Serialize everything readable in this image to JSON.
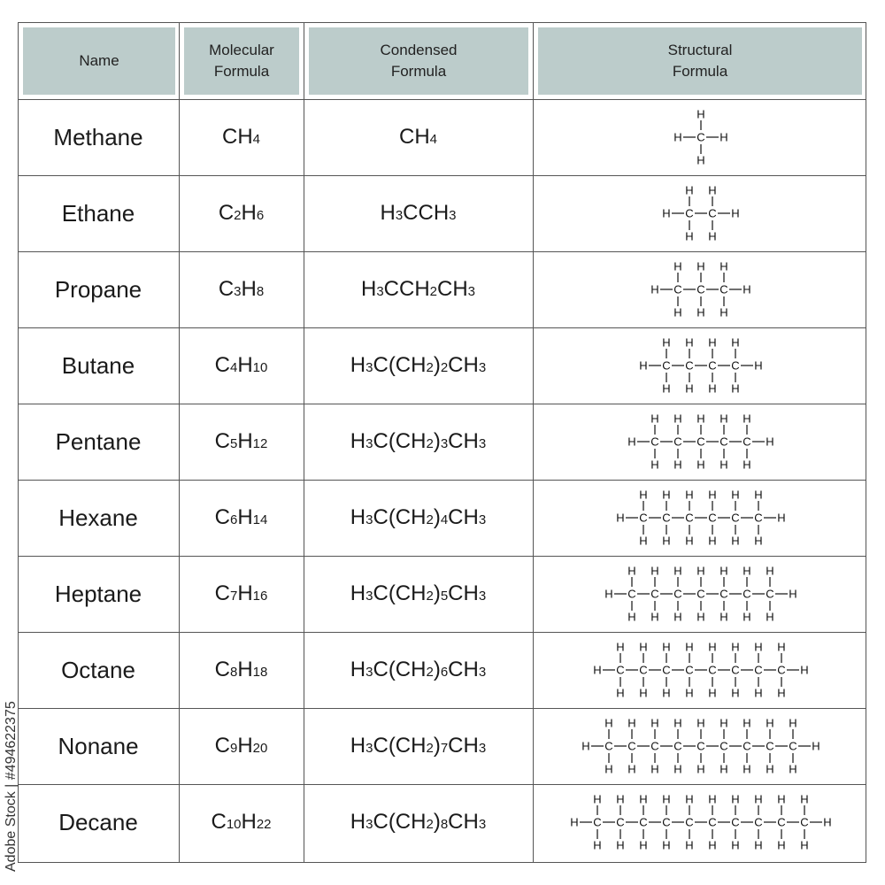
{
  "headers": {
    "name": "Name",
    "molecular": "Molecular\nFormula",
    "condensed": "Condensed\nFormula",
    "structural": "Structural\nFormula"
  },
  "rows": [
    {
      "name": "Methane",
      "carbons": 1,
      "molecular": [
        {
          "t": "CH"
        },
        {
          "t": "4",
          "sub": true
        }
      ],
      "condensed": [
        {
          "t": "CH"
        },
        {
          "t": "4",
          "sub": true
        }
      ]
    },
    {
      "name": "Ethane",
      "carbons": 2,
      "molecular": [
        {
          "t": "C"
        },
        {
          "t": "2",
          "sub": true
        },
        {
          "t": "H"
        },
        {
          "t": "6",
          "sub": true
        }
      ],
      "condensed": [
        {
          "t": "H"
        },
        {
          "t": "3",
          "sub": true
        },
        {
          "t": "CCH"
        },
        {
          "t": "3",
          "sub": true
        }
      ]
    },
    {
      "name": "Propane",
      "carbons": 3,
      "molecular": [
        {
          "t": "C"
        },
        {
          "t": "3",
          "sub": true
        },
        {
          "t": "H"
        },
        {
          "t": "8",
          "sub": true
        }
      ],
      "condensed": [
        {
          "t": "H"
        },
        {
          "t": "3",
          "sub": true
        },
        {
          "t": "CCH"
        },
        {
          "t": "2",
          "sub": true
        },
        {
          "t": "CH"
        },
        {
          "t": "3",
          "sub": true
        }
      ]
    },
    {
      "name": "Butane",
      "carbons": 4,
      "molecular": [
        {
          "t": "C"
        },
        {
          "t": "4",
          "sub": true
        },
        {
          "t": "H"
        },
        {
          "t": "10",
          "sub": true
        }
      ],
      "condensed": [
        {
          "t": "H"
        },
        {
          "t": "3",
          "sub": true
        },
        {
          "t": "C(CH"
        },
        {
          "t": "2",
          "sub": true
        },
        {
          "t": ")"
        },
        {
          "t": "2",
          "sub": true
        },
        {
          "t": "CH"
        },
        {
          "t": "3",
          "sub": true
        }
      ]
    },
    {
      "name": "Pentane",
      "carbons": 5,
      "molecular": [
        {
          "t": "C"
        },
        {
          "t": "5",
          "sub": true
        },
        {
          "t": "H"
        },
        {
          "t": "12",
          "sub": true
        }
      ],
      "condensed": [
        {
          "t": "H"
        },
        {
          "t": "3",
          "sub": true
        },
        {
          "t": "C(CH"
        },
        {
          "t": "2",
          "sub": true
        },
        {
          "t": ")"
        },
        {
          "t": "3",
          "sub": true
        },
        {
          "t": "CH"
        },
        {
          "t": "3",
          "sub": true
        }
      ]
    },
    {
      "name": "Hexane",
      "carbons": 6,
      "molecular": [
        {
          "t": "C"
        },
        {
          "t": "6",
          "sub": true
        },
        {
          "t": "H"
        },
        {
          "t": "14",
          "sub": true
        }
      ],
      "condensed": [
        {
          "t": "H"
        },
        {
          "t": "3",
          "sub": true
        },
        {
          "t": "C(CH"
        },
        {
          "t": "2",
          "sub": true
        },
        {
          "t": ")"
        },
        {
          "t": "4",
          "sub": true
        },
        {
          "t": "CH"
        },
        {
          "t": "3",
          "sub": true
        }
      ]
    },
    {
      "name": "Heptane",
      "carbons": 7,
      "molecular": [
        {
          "t": "C"
        },
        {
          "t": "7",
          "sub": true
        },
        {
          "t": "H"
        },
        {
          "t": "16",
          "sub": true
        }
      ],
      "condensed": [
        {
          "t": "H"
        },
        {
          "t": "3",
          "sub": true
        },
        {
          "t": "C(CH"
        },
        {
          "t": "2",
          "sub": true
        },
        {
          "t": ")"
        },
        {
          "t": "5",
          "sub": true
        },
        {
          "t": "CH"
        },
        {
          "t": "3",
          "sub": true
        }
      ]
    },
    {
      "name": "Octane",
      "carbons": 8,
      "molecular": [
        {
          "t": "C"
        },
        {
          "t": "8",
          "sub": true
        },
        {
          "t": "H"
        },
        {
          "t": "18",
          "sub": true
        }
      ],
      "condensed": [
        {
          "t": "H"
        },
        {
          "t": "3",
          "sub": true
        },
        {
          "t": "C(CH"
        },
        {
          "t": "2",
          "sub": true
        },
        {
          "t": ")"
        },
        {
          "t": "6",
          "sub": true
        },
        {
          "t": "CH"
        },
        {
          "t": "3",
          "sub": true
        }
      ]
    },
    {
      "name": "Nonane",
      "carbons": 9,
      "molecular": [
        {
          "t": "C"
        },
        {
          "t": "9",
          "sub": true
        },
        {
          "t": "H"
        },
        {
          "t": "20",
          "sub": true
        }
      ],
      "condensed": [
        {
          "t": "H"
        },
        {
          "t": "3",
          "sub": true
        },
        {
          "t": "C(CH"
        },
        {
          "t": "2",
          "sub": true
        },
        {
          "t": ")"
        },
        {
          "t": "7",
          "sub": true
        },
        {
          "t": "CH"
        },
        {
          "t": "3",
          "sub": true
        }
      ]
    },
    {
      "name": "Decane",
      "carbons": 10,
      "molecular": [
        {
          "t": "C"
        },
        {
          "t": "10",
          "sub": true
        },
        {
          "t": "H"
        },
        {
          "t": "22",
          "sub": true
        }
      ],
      "condensed": [
        {
          "t": "H"
        },
        {
          "t": "3",
          "sub": true
        },
        {
          "t": "C(CH"
        },
        {
          "t": "2",
          "sub": true
        },
        {
          "t": ")"
        },
        {
          "t": "8",
          "sub": true
        },
        {
          "t": "CH"
        },
        {
          "t": "3",
          "sub": true
        }
      ]
    }
  ],
  "atoms": {
    "carbon": "C",
    "hydrogen": "H"
  },
  "watermark": "Adobe Stock | #494622375",
  "colors": {
    "header_bg": "#bccccb",
    "grid": "#555555"
  }
}
